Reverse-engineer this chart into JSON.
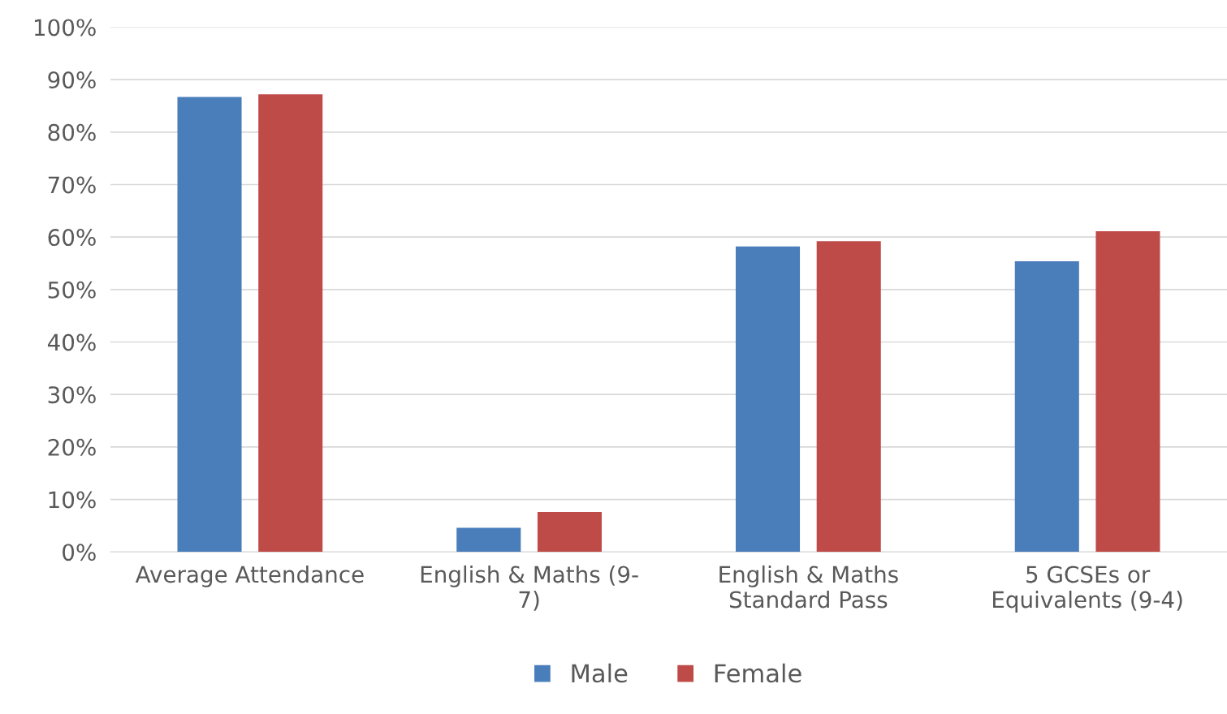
{
  "chart_data": {
    "type": "bar",
    "categories": [
      "Average Attendance",
      "English & Maths (9-\n7)",
      "English & Maths\nStandard Pass",
      "5 GCSEs or\nEquivalents (9-4)"
    ],
    "series": [
      {
        "name": "Male",
        "color": "#4a7ebb",
        "values": [
          86.7,
          4.6,
          58.2,
          55.4
        ]
      },
      {
        "name": "Female",
        "color": "#be4b48",
        "values": [
          87.2,
          7.6,
          59.2,
          61.1
        ]
      }
    ],
    "ylim": [
      0,
      100
    ],
    "yticks": [
      {
        "value": 0,
        "label": "0%"
      },
      {
        "value": 10,
        "label": "10%"
      },
      {
        "value": 20,
        "label": "20%"
      },
      {
        "value": 30,
        "label": "30%"
      },
      {
        "value": 40,
        "label": "40%"
      },
      {
        "value": 50,
        "label": "50%"
      },
      {
        "value": 60,
        "label": "60%"
      },
      {
        "value": 70,
        "label": "70%"
      },
      {
        "value": 80,
        "label": "80%"
      },
      {
        "value": 90,
        "label": "90%"
      },
      {
        "value": 100,
        "label": "100%"
      }
    ],
    "grid": "y",
    "legend": "bottom"
  }
}
